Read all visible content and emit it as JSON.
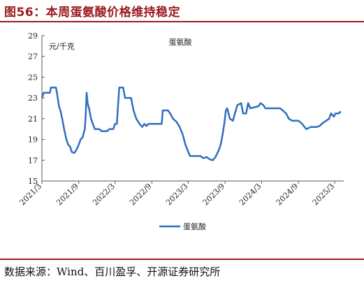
{
  "header": {
    "title": "图56：本周蛋氨酸价格维持稳定"
  },
  "footer": {
    "source": "数据来源：Wind、百川盈孚、开源证券研究所"
  },
  "chart_data": {
    "type": "line",
    "title": "蛋氨酸",
    "ylabel": "元/千克",
    "ylim": [
      15,
      29
    ],
    "yticks": [
      15,
      17,
      19,
      21,
      23,
      25,
      27,
      29
    ],
    "xlim": [
      "2021-03-01",
      "2025-04-15"
    ],
    "xticks": [
      "2021/3",
      "2021/9",
      "2022/3",
      "2022/9",
      "2023/3",
      "2023/9",
      "2024/3",
      "2024/9",
      "2025/3"
    ],
    "legend": "bottom-center",
    "grid": false,
    "series": [
      {
        "name": "蛋氨酸",
        "color": "#2e6fbf",
        "points": [
          [
            "2021-03-01",
            23.0
          ],
          [
            "2021-03-10",
            23.5
          ],
          [
            "2021-04-10",
            23.5
          ],
          [
            "2021-04-15",
            24.0
          ],
          [
            "2021-05-10",
            24.0
          ],
          [
            "2021-05-15",
            23.5
          ],
          [
            "2021-05-25",
            22.2
          ],
          [
            "2021-06-01",
            21.8
          ],
          [
            "2021-06-10",
            21.0
          ],
          [
            "2021-06-20",
            20.0
          ],
          [
            "2021-07-01",
            19.0
          ],
          [
            "2021-07-10",
            18.5
          ],
          [
            "2021-07-20",
            18.3
          ],
          [
            "2021-07-28",
            17.8
          ],
          [
            "2021-08-10",
            17.7
          ],
          [
            "2021-08-20",
            18.0
          ],
          [
            "2021-09-01",
            18.5
          ],
          [
            "2021-09-10",
            19.0
          ],
          [
            "2021-09-20",
            19.2
          ],
          [
            "2021-10-01",
            20.0
          ],
          [
            "2021-10-06",
            21.5
          ],
          [
            "2021-10-10",
            23.5
          ],
          [
            "2021-10-15",
            22.5
          ],
          [
            "2021-10-22",
            22.0
          ],
          [
            "2021-11-01",
            21.0
          ],
          [
            "2021-11-10",
            20.5
          ],
          [
            "2021-11-20",
            20.0
          ],
          [
            "2021-12-10",
            20.0
          ],
          [
            "2021-12-25",
            19.8
          ],
          [
            "2022-01-20",
            19.8
          ],
          [
            "2022-02-01",
            20.0
          ],
          [
            "2022-02-20",
            20.0
          ],
          [
            "2022-03-01",
            20.5
          ],
          [
            "2022-03-10",
            20.5
          ],
          [
            "2022-03-15",
            22.0
          ],
          [
            "2022-03-22",
            24.0
          ],
          [
            "2022-04-10",
            24.0
          ],
          [
            "2022-04-20",
            23.0
          ],
          [
            "2022-05-10",
            23.0
          ],
          [
            "2022-05-20",
            23.0
          ],
          [
            "2022-06-01",
            21.8
          ],
          [
            "2022-06-15",
            21.0
          ],
          [
            "2022-07-01",
            20.5
          ],
          [
            "2022-07-15",
            20.2
          ],
          [
            "2022-07-25",
            20.5
          ],
          [
            "2022-08-05",
            20.3
          ],
          [
            "2022-08-15",
            20.5
          ],
          [
            "2022-09-01",
            20.5
          ],
          [
            "2022-10-01",
            20.5
          ],
          [
            "2022-10-20",
            20.5
          ],
          [
            "2022-10-25",
            21.8
          ],
          [
            "2022-11-20",
            21.8
          ],
          [
            "2022-12-01",
            21.5
          ],
          [
            "2022-12-15",
            21.0
          ],
          [
            "2023-01-01",
            20.7
          ],
          [
            "2023-01-15",
            20.3
          ],
          [
            "2023-02-01",
            19.5
          ],
          [
            "2023-02-15",
            18.5
          ],
          [
            "2023-03-01",
            17.8
          ],
          [
            "2023-03-10",
            17.4
          ],
          [
            "2023-05-01",
            17.4
          ],
          [
            "2023-05-15",
            17.2
          ],
          [
            "2023-06-01",
            17.3
          ],
          [
            "2023-06-15",
            17.1
          ],
          [
            "2023-07-01",
            17.0
          ],
          [
            "2023-07-15",
            17.3
          ],
          [
            "2023-08-01",
            18.0
          ],
          [
            "2023-08-10",
            18.5
          ],
          [
            "2023-08-20",
            19.5
          ],
          [
            "2023-08-28",
            20.5
          ],
          [
            "2023-09-05",
            21.8
          ],
          [
            "2023-09-12",
            22.0
          ],
          [
            "2023-09-25",
            21.0
          ],
          [
            "2023-10-10",
            20.8
          ],
          [
            "2023-10-20",
            21.5
          ],
          [
            "2023-11-01",
            22.3
          ],
          [
            "2023-11-20",
            22.5
          ],
          [
            "2023-11-30",
            21.5
          ],
          [
            "2023-12-15",
            21.5
          ],
          [
            "2023-12-25",
            22.5
          ],
          [
            "2024-01-05",
            22.0
          ],
          [
            "2024-02-15",
            22.2
          ],
          [
            "2024-02-25",
            22.5
          ],
          [
            "2024-03-10",
            22.3
          ],
          [
            "2024-03-20",
            22.0
          ],
          [
            "2024-06-01",
            22.0
          ],
          [
            "2024-06-15",
            21.8
          ],
          [
            "2024-07-01",
            21.5
          ],
          [
            "2024-07-15",
            21.0
          ],
          [
            "2024-08-01",
            20.8
          ],
          [
            "2024-09-01",
            20.8
          ],
          [
            "2024-09-20",
            20.5
          ],
          [
            "2024-10-01",
            20.2
          ],
          [
            "2024-10-10",
            20.0
          ],
          [
            "2024-11-01",
            20.2
          ],
          [
            "2024-12-01",
            20.2
          ],
          [
            "2024-12-15",
            20.3
          ],
          [
            "2025-01-01",
            20.6
          ],
          [
            "2025-02-01",
            21.0
          ],
          [
            "2025-02-10",
            21.5
          ],
          [
            "2025-02-25",
            21.2
          ],
          [
            "2025-03-05",
            21.5
          ],
          [
            "2025-03-20",
            21.5
          ],
          [
            "2025-04-01",
            21.7
          ]
        ]
      }
    ]
  }
}
